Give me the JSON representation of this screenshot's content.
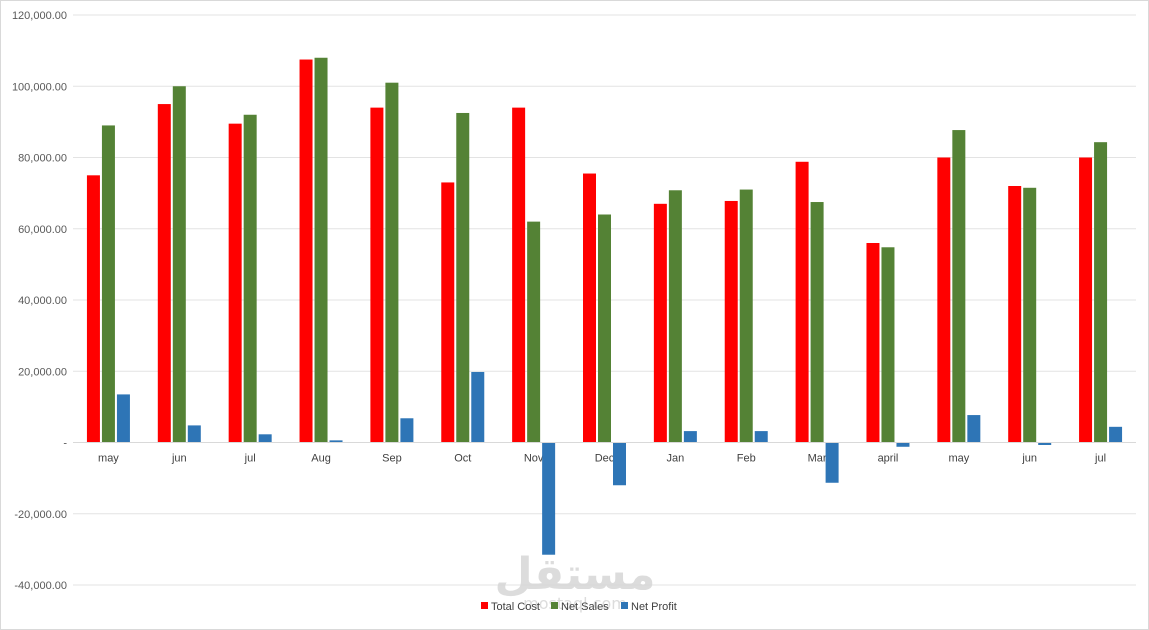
{
  "chart_data": {
    "type": "bar",
    "title": "",
    "xlabel": "",
    "ylabel": "",
    "ylim": [
      -40000,
      120000
    ],
    "yticks": [
      -40000,
      -20000,
      0,
      20000,
      40000,
      60000,
      80000,
      100000,
      120000
    ],
    "ytick_labels": [
      "-40,000.00",
      "-20,000.00",
      "-",
      "20,000.00",
      "40,000.00",
      "60,000.00",
      "80,000.00",
      "100,000.00",
      "120,000.00"
    ],
    "grid": true,
    "legend_position": "bottom",
    "categories": [
      "may",
      "jun",
      "jul",
      "Aug",
      "Sep",
      "Oct",
      "Nov",
      "Dec",
      "Jan",
      "Feb",
      "Mar",
      "april",
      "may",
      "jun",
      "jul"
    ],
    "series": [
      {
        "name": "Total Cost",
        "color": "#ff0000",
        "values": [
          75000,
          95000,
          89500,
          107500,
          94000,
          73000,
          94000,
          75500,
          67000,
          67800,
          78800,
          56000,
          80000,
          72000,
          80000
        ]
      },
      {
        "name": "Net Sales",
        "color": "#548235",
        "values": [
          89000,
          100000,
          92000,
          108000,
          101000,
          92500,
          62000,
          64000,
          70800,
          71000,
          67500,
          54800,
          87700,
          71500,
          84300
        ]
      },
      {
        "name": "Net Profit",
        "color": "#2e75b6",
        "values": [
          13500,
          4800,
          2300,
          600,
          6800,
          19800,
          -31500,
          -12000,
          3200,
          3200,
          -11300,
          -1200,
          7700,
          -700,
          4400
        ]
      }
    ]
  },
  "watermark": {
    "arabic": "مستقل",
    "latin": "mostaql.com"
  }
}
